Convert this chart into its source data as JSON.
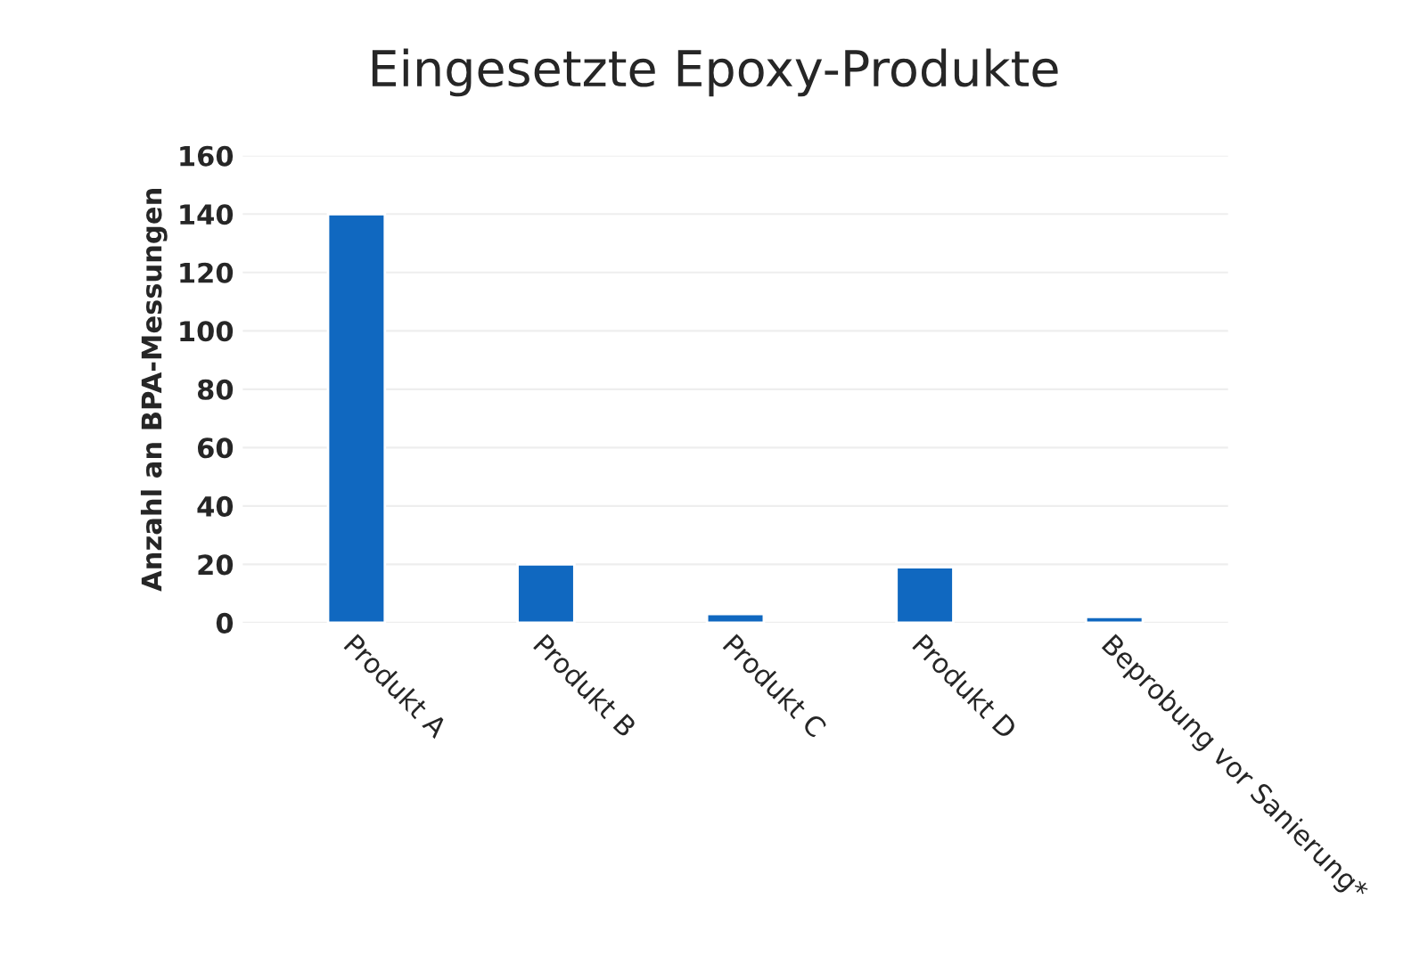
{
  "chart_data": {
    "type": "bar",
    "title": "Eingesetzte Epoxy-Produkte",
    "ylabel": "Anzahl an BPA-Messungen",
    "categories": [
      "Produkt A",
      "Produkt B",
      "Produkt C",
      "Produkt D",
      "Beprobung vor Sanierung*"
    ],
    "values": [
      140,
      20,
      3,
      19,
      2
    ],
    "color": "#1068c0",
    "ylim": [
      0,
      160
    ],
    "yticks": [
      0,
      20,
      40,
      60,
      80,
      100,
      120,
      140,
      160
    ],
    "grid": "y"
  }
}
